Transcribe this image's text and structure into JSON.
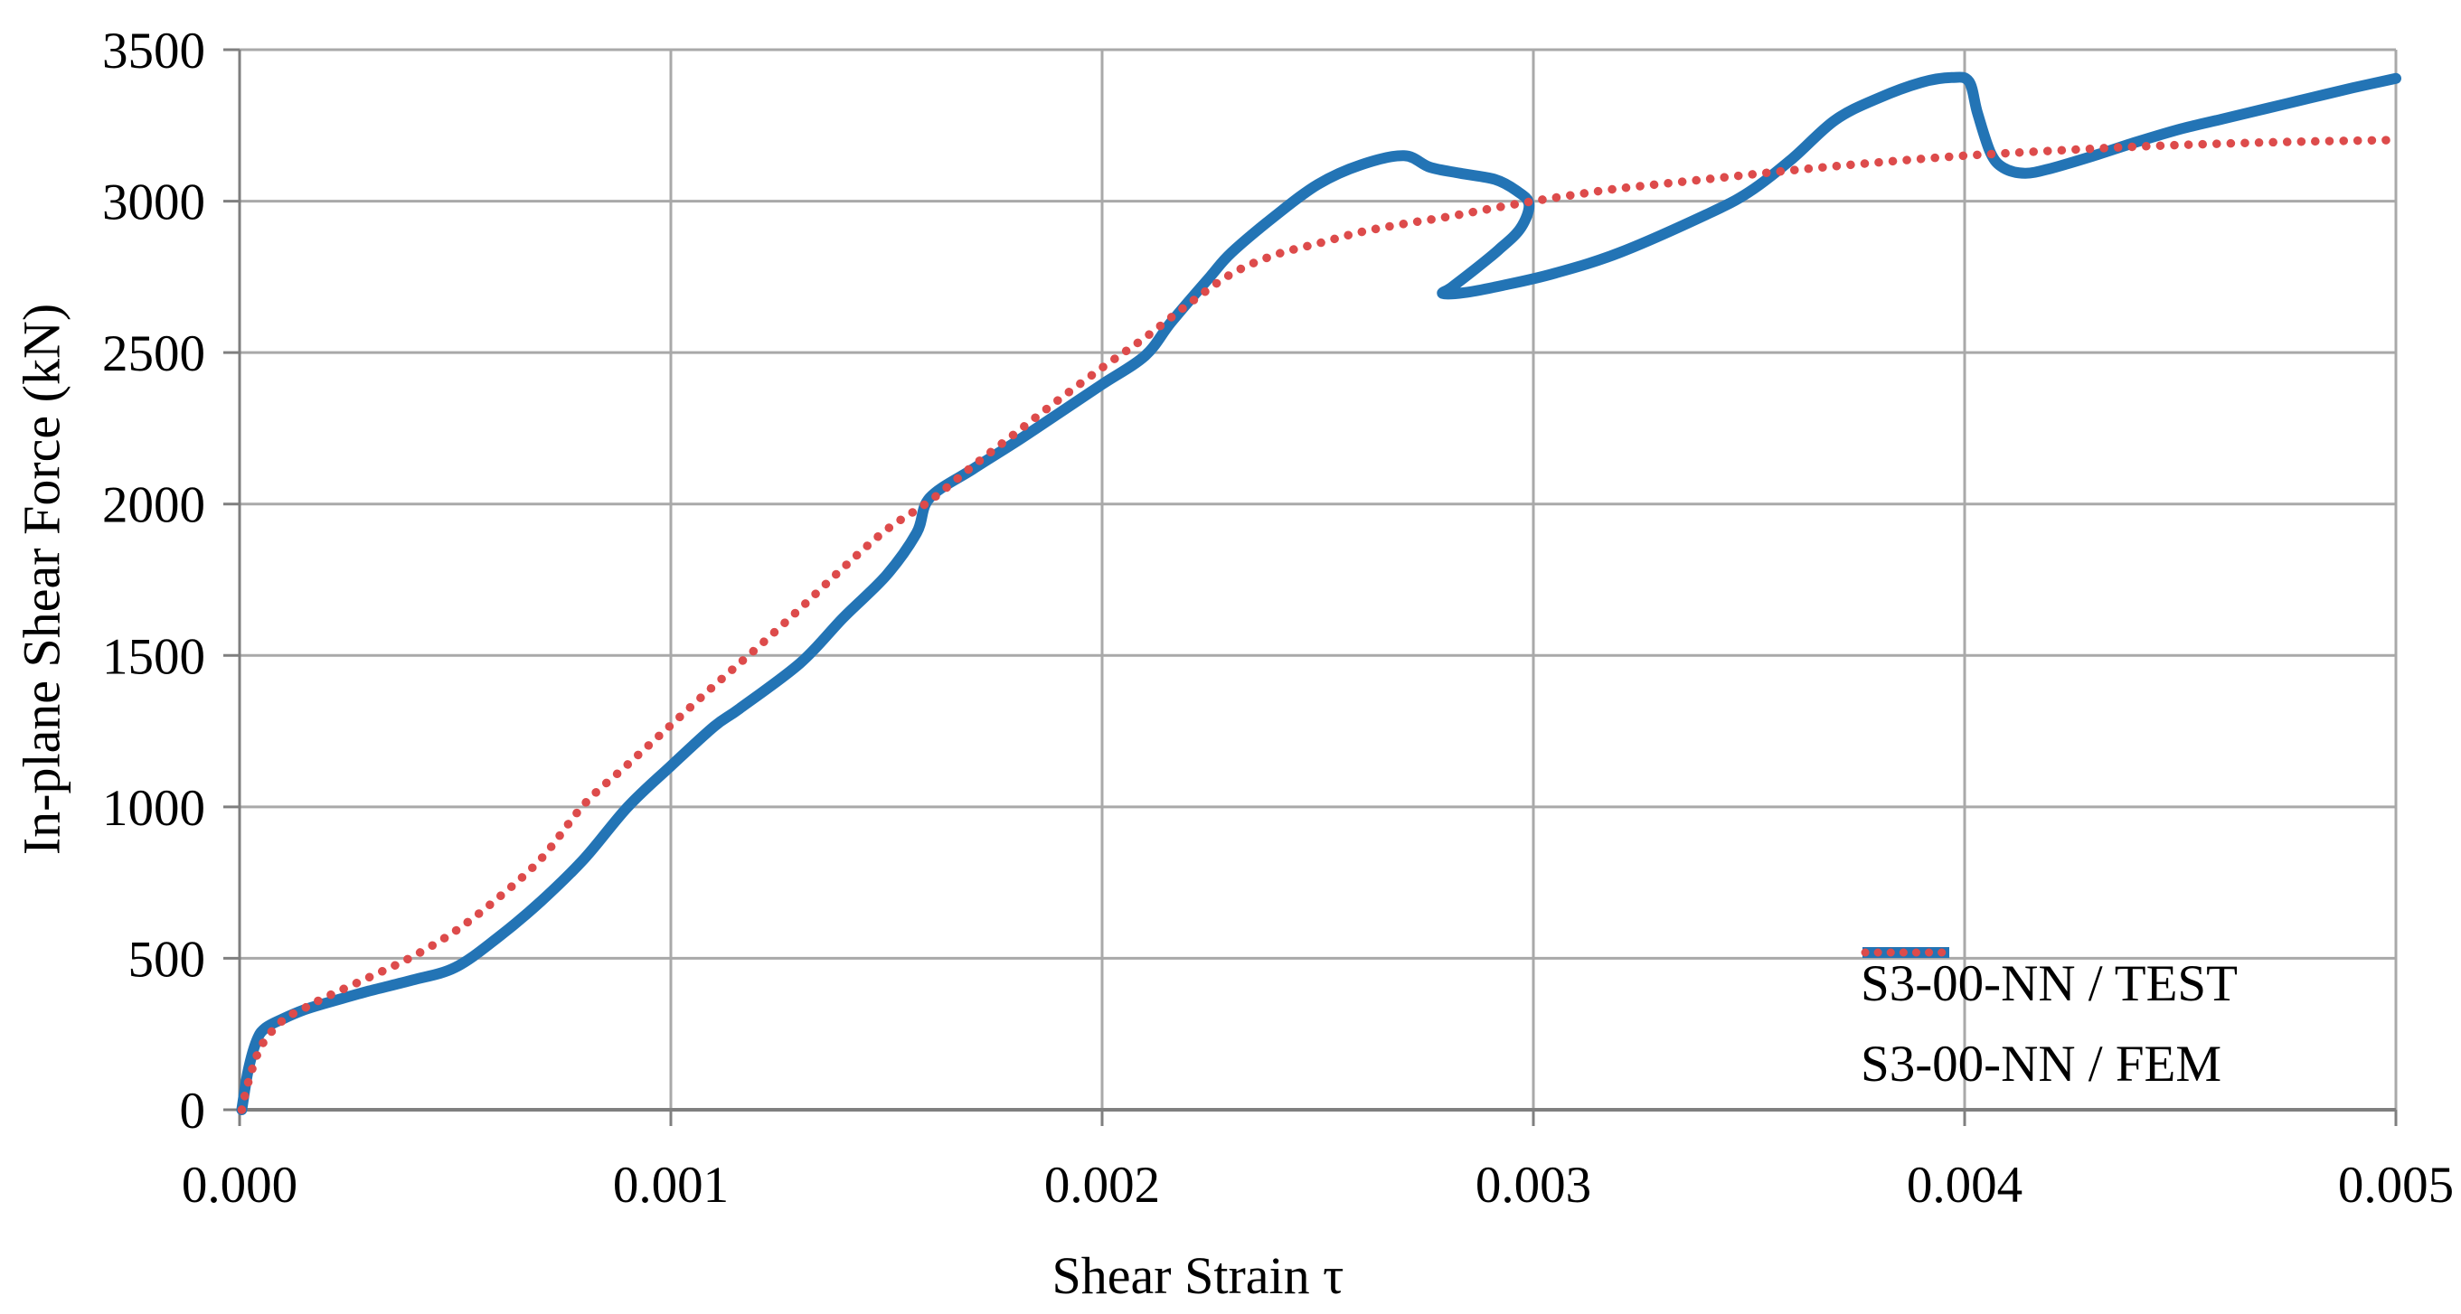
{
  "chart_data": {
    "type": "line",
    "title": "",
    "xlabel": "Shear Strain τ",
    "ylabel": "In-plane Shear Force (kN)",
    "xlim": [
      0,
      0.005
    ],
    "ylim": [
      0,
      3500
    ],
    "grid": true,
    "legend_position": "bottom-right",
    "x_ticks": {
      "values": [
        0,
        0.001,
        0.002,
        0.003,
        0.004,
        0.005
      ],
      "labels": [
        "0.000",
        "0.001",
        "0.002",
        "0.003",
        "0.004",
        "0.005"
      ]
    },
    "y_ticks": {
      "values": [
        0,
        500,
        1000,
        1500,
        2000,
        2500,
        3000,
        3500
      ],
      "labels": [
        "0",
        "500",
        "1000",
        "1500",
        "2000",
        "2500",
        "3000",
        "3500"
      ]
    },
    "colors": {
      "grid": "#a9a9a9",
      "axis": "#7f7f7f",
      "tick": "#7f7f7f",
      "test_series": "#2374b5",
      "fem_series": "#dd4b4b",
      "text": "#000000"
    },
    "series": [
      {
        "name": "S3-00-NN / TEST",
        "style": "solid",
        "color": "#2374b5",
        "points": [
          [
            5e-06,
            0
          ],
          [
            2e-05,
            130
          ],
          [
            4e-05,
            230
          ],
          [
            6e-05,
            270
          ],
          [
            0.0001,
            300
          ],
          [
            0.00015,
            330
          ],
          [
            0.0002,
            352
          ],
          [
            0.0003,
            392
          ],
          [
            0.0004,
            428
          ],
          [
            0.0005,
            470
          ],
          [
            0.0006,
            570
          ],
          [
            0.0007,
            690
          ],
          [
            0.0008,
            830
          ],
          [
            0.0009,
            1000
          ],
          [
            0.001,
            1135
          ],
          [
            0.0011,
            1265
          ],
          [
            0.00116,
            1325
          ],
          [
            0.0013,
            1475
          ],
          [
            0.0014,
            1625
          ],
          [
            0.0015,
            1765
          ],
          [
            0.00157,
            1905
          ],
          [
            0.0016,
            2020
          ],
          [
            0.0017,
            2115
          ],
          [
            0.0018,
            2205
          ],
          [
            0.0019,
            2300
          ],
          [
            0.002,
            2395
          ],
          [
            0.0021,
            2490
          ],
          [
            0.00216,
            2600
          ],
          [
            0.00225,
            2750
          ],
          [
            0.0023,
            2830
          ],
          [
            0.0024,
            2950
          ],
          [
            0.0025,
            3055
          ],
          [
            0.0026,
            3120
          ],
          [
            0.0027,
            3150
          ],
          [
            0.00276,
            3112
          ],
          [
            0.00283,
            3092
          ],
          [
            0.00291,
            3072
          ],
          [
            0.00296,
            3035
          ],
          [
            0.00299,
            2990
          ],
          [
            0.00297,
            2910
          ],
          [
            0.00292,
            2840
          ],
          [
            0.00286,
            2770
          ],
          [
            0.00281,
            2715
          ],
          [
            0.00279,
            2695
          ],
          [
            0.00284,
            2698
          ],
          [
            0.00293,
            2722
          ],
          [
            0.00305,
            2762
          ],
          [
            0.0032,
            2830
          ],
          [
            0.0034,
            2955
          ],
          [
            0.0035,
            3030
          ],
          [
            0.0036,
            3140
          ],
          [
            0.0037,
            3268
          ],
          [
            0.0038,
            3340
          ],
          [
            0.0039,
            3392
          ],
          [
            0.00397,
            3408
          ],
          [
            0.00401,
            3395
          ],
          [
            0.00403,
            3290
          ],
          [
            0.00406,
            3160
          ],
          [
            0.00409,
            3110
          ],
          [
            0.00414,
            3092
          ],
          [
            0.0042,
            3108
          ],
          [
            0.0043,
            3150
          ],
          [
            0.0044,
            3196
          ],
          [
            0.0045,
            3238
          ],
          [
            0.0046,
            3272
          ],
          [
            0.0047,
            3306
          ],
          [
            0.0048,
            3340
          ],
          [
            0.0049,
            3374
          ],
          [
            0.005,
            3405
          ]
        ]
      },
      {
        "name": "S3-00-NN / FEM",
        "style": "dotted",
        "color": "#dd4b4b",
        "points": [
          [
            5e-06,
            0
          ],
          [
            2e-05,
            90
          ],
          [
            5e-05,
            210
          ],
          [
            0.0001,
            295
          ],
          [
            0.00015,
            335
          ],
          [
            0.0002,
            372
          ],
          [
            0.0003,
            437
          ],
          [
            0.0004,
            505
          ],
          [
            0.0005,
            590
          ],
          [
            0.0006,
            700
          ],
          [
            0.0007,
            830
          ],
          [
            0.0008,
            1010
          ],
          [
            0.0009,
            1140
          ],
          [
            0.001,
            1270
          ],
          [
            0.0011,
            1400
          ],
          [
            0.0012,
            1525
          ],
          [
            0.0013,
            1655
          ],
          [
            0.0014,
            1790
          ],
          [
            0.0015,
            1915
          ],
          [
            0.0016,
            2010
          ],
          [
            0.0017,
            2125
          ],
          [
            0.0018,
            2235
          ],
          [
            0.0019,
            2345
          ],
          [
            0.002,
            2450
          ],
          [
            0.0021,
            2550
          ],
          [
            0.0022,
            2660
          ],
          [
            0.0023,
            2760
          ],
          [
            0.0024,
            2822
          ],
          [
            0.0025,
            2860
          ],
          [
            0.0026,
            2898
          ],
          [
            0.0027,
            2925
          ],
          [
            0.0028,
            2948
          ],
          [
            0.0029,
            2975
          ],
          [
            0.003,
            3000
          ],
          [
            0.0031,
            3022
          ],
          [
            0.0032,
            3042
          ],
          [
            0.0034,
            3072
          ],
          [
            0.0036,
            3102
          ],
          [
            0.0038,
            3128
          ],
          [
            0.004,
            3150
          ],
          [
            0.0042,
            3166
          ],
          [
            0.0044,
            3180
          ],
          [
            0.0046,
            3190
          ],
          [
            0.0048,
            3197
          ],
          [
            0.005,
            3202
          ]
        ]
      }
    ],
    "legend": [
      {
        "label": "S3-00-NN / TEST",
        "style": "solid",
        "color": "#2374b5"
      },
      {
        "label": "S3-00-NN / FEM",
        "style": "dotted",
        "color": "#dd4b4b"
      }
    ]
  }
}
